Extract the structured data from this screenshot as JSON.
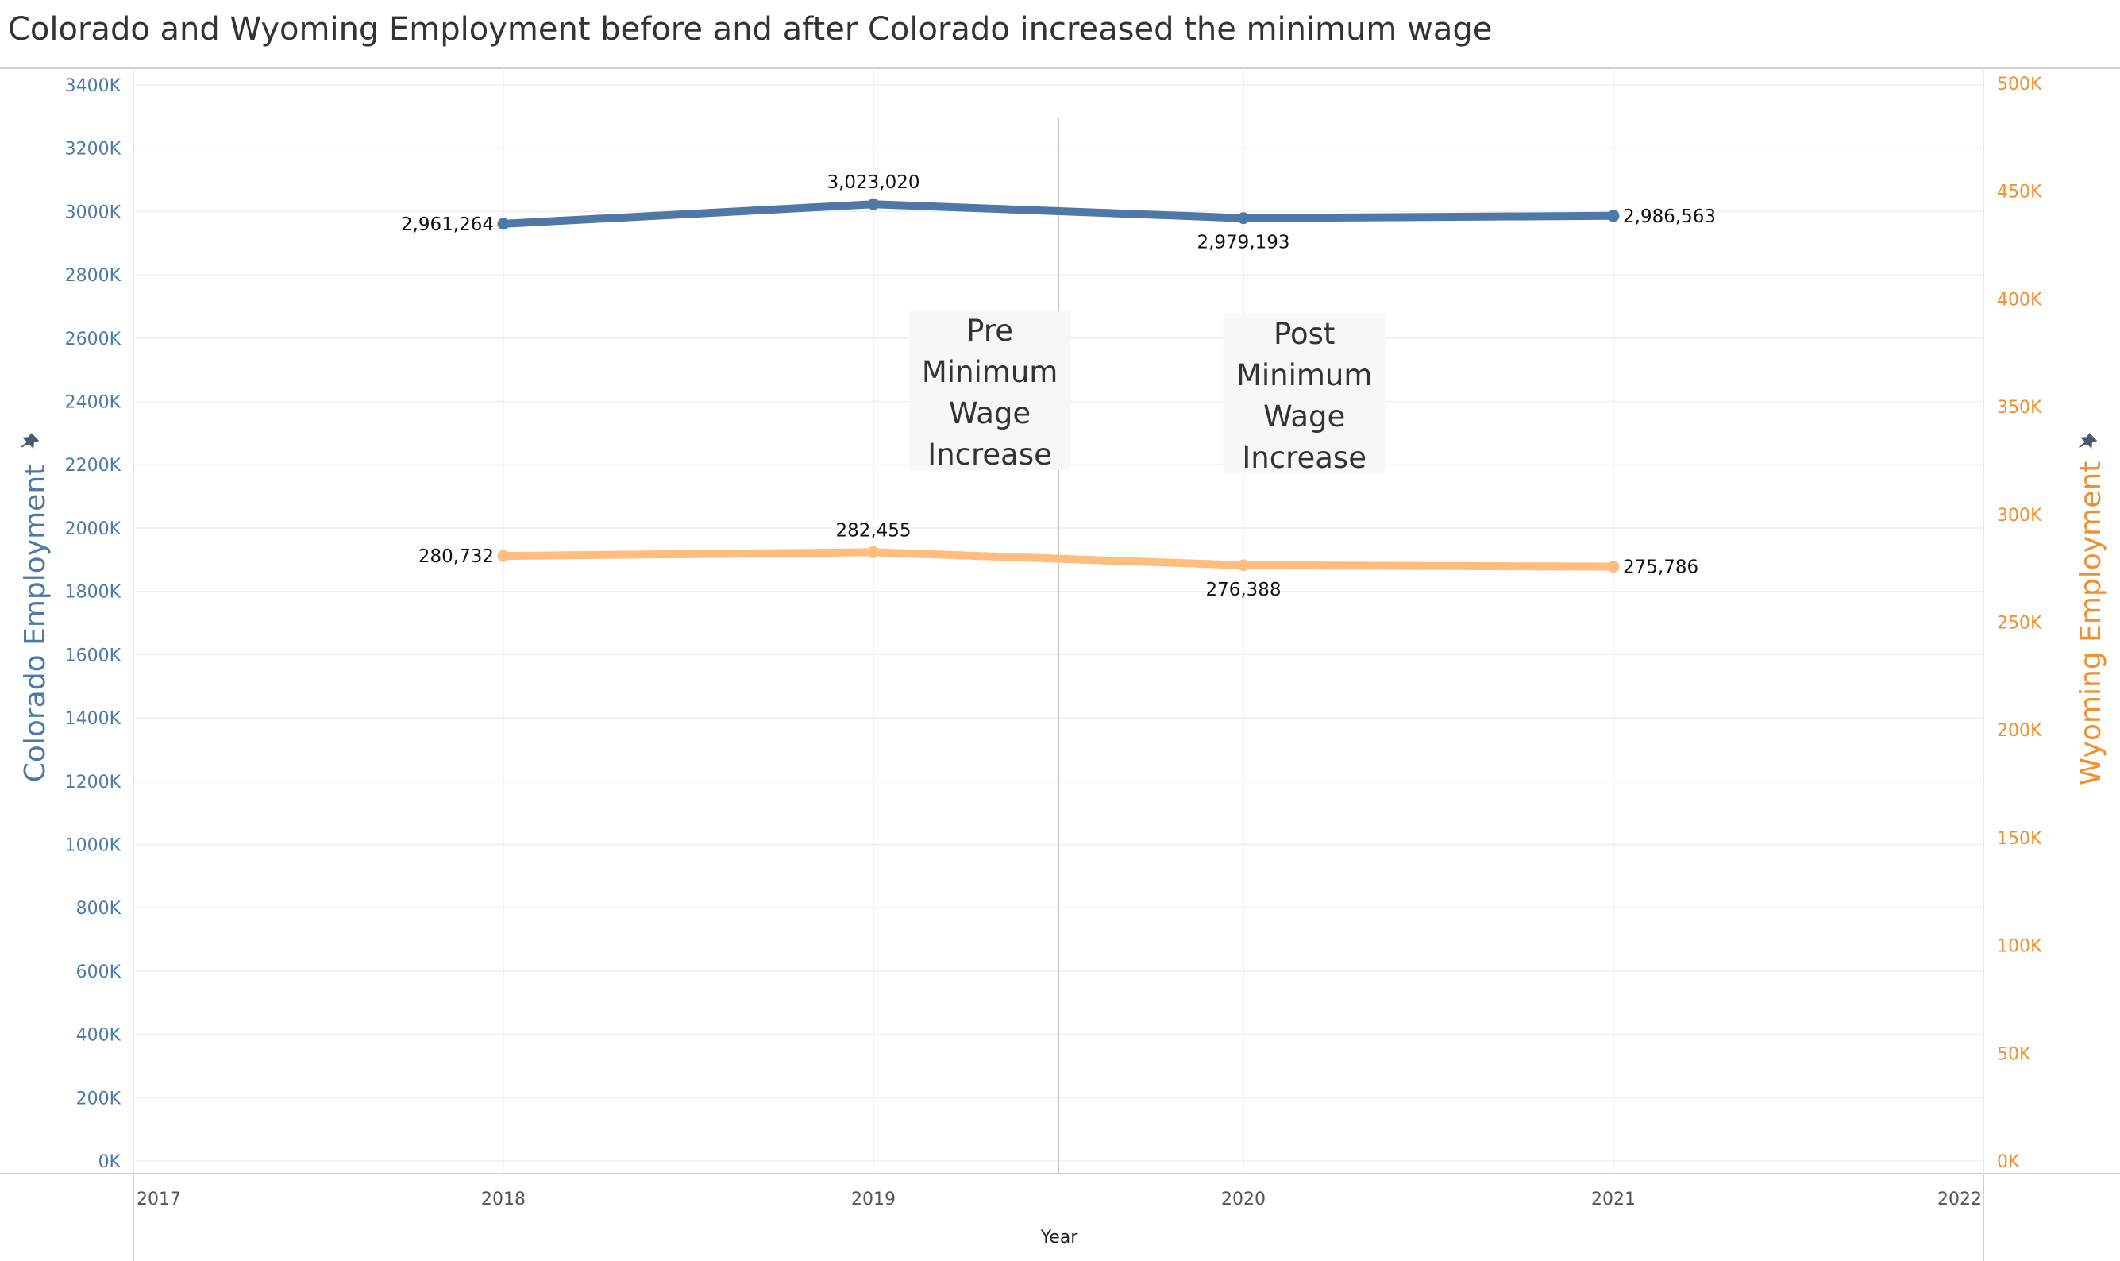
{
  "title": "Colorado and Wyoming Employment before and after Colorado increased the minimum wage",
  "chart_data": {
    "type": "line",
    "title": "Colorado and Wyoming Employment before and after Colorado increased the minimum wage",
    "xlabel": "Year",
    "ylabel": "Colorado Employment",
    "ylabel_right": "Wyoming Employment",
    "x_ticks": [
      "2017",
      "2018",
      "2019",
      "2020",
      "2021",
      "2022"
    ],
    "xlim": [
      2017,
      2022
    ],
    "ylim": [
      0,
      3400000
    ],
    "ylim_right": [
      0,
      500000
    ],
    "y_ticks": [
      "0K",
      "200K",
      "400K",
      "600K",
      "800K",
      "1000K",
      "1200K",
      "1400K",
      "1600K",
      "1800K",
      "2000K",
      "2200K",
      "2400K",
      "2600K",
      "2800K",
      "3000K",
      "3200K",
      "3400K"
    ],
    "y_ticks_right": [
      "0K",
      "50K",
      "100K",
      "150K",
      "200K",
      "250K",
      "300K",
      "350K",
      "400K",
      "450K",
      "500K"
    ],
    "grid": true,
    "series": [
      {
        "name": "Colorado Employment",
        "axis": "left",
        "color": "#4e79a7",
        "x": [
          2018,
          2019,
          2020,
          2021
        ],
        "values": [
          2961264,
          3023020,
          2979193,
          2986563
        ],
        "labels": [
          "2,961,264",
          "3,023,020",
          "2,979,193",
          "2,986,563"
        ]
      },
      {
        "name": "Wyoming Employment",
        "axis": "right",
        "color": "#ffbe7d",
        "x": [
          2018,
          2019,
          2020,
          2021
        ],
        "values": [
          280732,
          282455,
          276388,
          275786
        ],
        "labels": [
          "280,732",
          "282,455",
          "276,388",
          "275,786"
        ]
      }
    ],
    "reference_line_x": 2019.5,
    "annotations": [
      {
        "lines": [
          "Pre",
          "Minimum",
          "Wage",
          "Increase"
        ],
        "x": 2019.1
      },
      {
        "lines": [
          "Post",
          "Minimum",
          "Wage",
          "Increase"
        ],
        "x": 2019.95
      }
    ]
  }
}
